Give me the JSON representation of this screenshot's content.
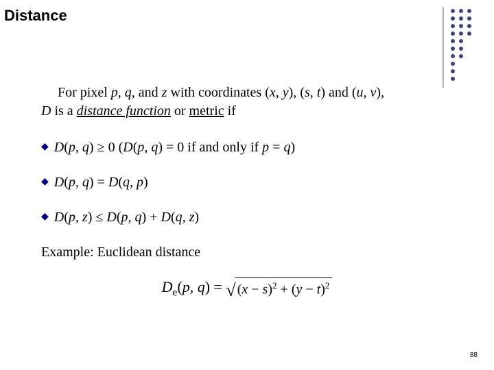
{
  "title": "Distance",
  "intro": {
    "line1_prefix": "For pixel ",
    "p": "p",
    "sep1": ", ",
    "q": "q",
    "sep2": ", and ",
    "z": "z",
    "with": " with coordinates (",
    "xy": "x, y",
    "mid1": "), (",
    "st": "s, t",
    "mid2": ") and (",
    "uv": "u, v",
    "end1": "),",
    "line2_D": "D",
    "line2_mid": " is a ",
    "distfunc": "distance function",
    "or": " or ",
    "metric": "metric",
    "if": " if"
  },
  "b1": {
    "pre": "D",
    "args1": "(",
    "pq": "p, q",
    "args1c": ") ",
    "geq": "≥",
    "zero": " 0    (",
    "D2": "D",
    "args2": "(",
    "pq2": "p, q",
    "args2c": ") = 0 if and only if ",
    "p": "p",
    "eq": " = ",
    "q": "q",
    "close": ")"
  },
  "b2": {
    "D1": "D",
    "a1": "(",
    "pq": "p, q",
    "a1c": ") = ",
    "D2": "D",
    "a2": "(",
    "qp": "q, p",
    "a2c": ")"
  },
  "b3": {
    "D1": "D",
    "a1": "(",
    "pz": "p, z",
    "a1c": ")  ",
    "leq": "≤",
    "sp": "  ",
    "D2": "D",
    "a2": "(",
    "pq": "p, q",
    "a2c": ") + ",
    "D3": "D",
    "a3": "(",
    "qz": "q, z",
    "a3c": ")"
  },
  "example": "Example: Euclidean distance",
  "formula": {
    "De": "D",
    "e_sub": "e",
    "open": "(",
    "pq": "p, q",
    "close_eq": ") = ",
    "rad_open1": "(",
    "x": "x",
    "minus1": " − ",
    "s": "s",
    "rad_close1": ")",
    "sq1": "2",
    "plus": " + ",
    "rad_open2": "(",
    "y": "y",
    "minus2": " − ",
    "t": "t",
    "rad_close2": ")",
    "sq2": "2"
  },
  "page_number": "88",
  "deco": {
    "line_color": "#606060",
    "dot_color": "#404080",
    "dot_r": 3,
    "cols": [
      0,
      12,
      24
    ],
    "rows": [
      0,
      11,
      22,
      33,
      44,
      55,
      66,
      77,
      88,
      99
    ]
  }
}
